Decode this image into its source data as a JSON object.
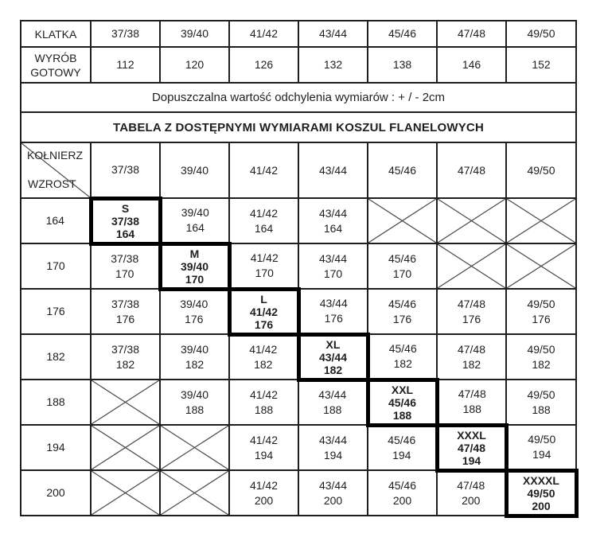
{
  "colors": {
    "border": "#1f1f1f",
    "text": "#1f1f1f",
    "highlight_border": "#000000",
    "x_line": "#4a4a4a",
    "background": "#ffffff"
  },
  "top_table": {
    "rows": [
      {
        "label": "KLATKA",
        "values": [
          "37/38",
          "39/40",
          "41/42",
          "43/44",
          "45/46",
          "47/48",
          "49/50"
        ]
      },
      {
        "label": "WYRÓB GOTOWY",
        "values": [
          "112",
          "120",
          "126",
          "132",
          "138",
          "146",
          "152"
        ]
      }
    ]
  },
  "note": "Dopuszczalna wartość odchylenia wymiarów : + / - 2cm",
  "title": "TABELA Z DOSTĘPNYMI WYMIARAMI KOSZUL FLANELOWYCH",
  "size_table": {
    "corner": {
      "top_label": "KOŁNIERZ",
      "bottom_label": "WZROST"
    },
    "columns": [
      "37/38",
      "39/40",
      "41/42",
      "43/44",
      "45/46",
      "47/48",
      "49/50"
    ],
    "rows": [
      {
        "height": "164",
        "cells": [
          {
            "type": "highlight",
            "size": "S",
            "collar": "37/38",
            "h": "164"
          },
          {
            "type": "available",
            "collar": "39/40",
            "h": "164"
          },
          {
            "type": "available",
            "collar": "41/42",
            "h": "164"
          },
          {
            "type": "available",
            "collar": "43/44",
            "h": "164"
          },
          {
            "type": "x"
          },
          {
            "type": "x"
          },
          {
            "type": "x"
          }
        ]
      },
      {
        "height": "170",
        "cells": [
          {
            "type": "available",
            "collar": "37/38",
            "h": "170"
          },
          {
            "type": "highlight",
            "size": "M",
            "collar": "39/40",
            "h": "170"
          },
          {
            "type": "available",
            "collar": "41/42",
            "h": "170"
          },
          {
            "type": "available",
            "collar": "43/44",
            "h": "170"
          },
          {
            "type": "available",
            "collar": "45/46",
            "h": "170"
          },
          {
            "type": "x"
          },
          {
            "type": "x"
          }
        ]
      },
      {
        "height": "176",
        "cells": [
          {
            "type": "available",
            "collar": "37/38",
            "h": "176"
          },
          {
            "type": "available",
            "collar": "39/40",
            "h": "176"
          },
          {
            "type": "highlight",
            "size": "L",
            "collar": "41/42",
            "h": "176"
          },
          {
            "type": "available",
            "collar": "43/44",
            "h": "176"
          },
          {
            "type": "available",
            "collar": "45/46",
            "h": "176"
          },
          {
            "type": "available",
            "collar": "47/48",
            "h": "176"
          },
          {
            "type": "available",
            "collar": "49/50",
            "h": "176"
          }
        ]
      },
      {
        "height": "182",
        "cells": [
          {
            "type": "available",
            "collar": "37/38",
            "h": "182"
          },
          {
            "type": "available",
            "collar": "39/40",
            "h": "182"
          },
          {
            "type": "available",
            "collar": "41/42",
            "h": "182"
          },
          {
            "type": "highlight",
            "size": "XL",
            "collar": "43/44",
            "h": "182"
          },
          {
            "type": "available",
            "collar": "45/46",
            "h": "182"
          },
          {
            "type": "available",
            "collar": "47/48",
            "h": "182"
          },
          {
            "type": "available",
            "collar": "49/50",
            "h": "182"
          }
        ]
      },
      {
        "height": "188",
        "cells": [
          {
            "type": "x"
          },
          {
            "type": "available",
            "collar": "39/40",
            "h": "188"
          },
          {
            "type": "available",
            "collar": "41/42",
            "h": "188"
          },
          {
            "type": "available",
            "collar": "43/44",
            "h": "188"
          },
          {
            "type": "highlight",
            "size": "XXL",
            "collar": "45/46",
            "h": "188"
          },
          {
            "type": "available",
            "collar": "47/48",
            "h": "188"
          },
          {
            "type": "available",
            "collar": "49/50",
            "h": "188"
          }
        ]
      },
      {
        "height": "194",
        "cells": [
          {
            "type": "x"
          },
          {
            "type": "x"
          },
          {
            "type": "available",
            "collar": "41/42",
            "h": "194"
          },
          {
            "type": "available",
            "collar": "43/44",
            "h": "194"
          },
          {
            "type": "available",
            "collar": "45/46",
            "h": "194"
          },
          {
            "type": "highlight",
            "size": "XXXL",
            "collar": "47/48",
            "h": "194"
          },
          {
            "type": "available",
            "collar": "49/50",
            "h": "194"
          }
        ]
      },
      {
        "height": "200",
        "cells": [
          {
            "type": "x"
          },
          {
            "type": "x"
          },
          {
            "type": "available",
            "collar": "41/42",
            "h": "200"
          },
          {
            "type": "available",
            "collar": "43/44",
            "h": "200"
          },
          {
            "type": "available",
            "collar": "45/46",
            "h": "200"
          },
          {
            "type": "available",
            "collar": "47/48",
            "h": "200"
          },
          {
            "type": "highlight",
            "size": "XXXXL",
            "collar": "49/50",
            "h": "200"
          }
        ]
      }
    ]
  },
  "layout_numbers": {
    "row_heights": {
      "klatka": 33,
      "wyrob": 45,
      "note": 37,
      "title": 38,
      "header": 70,
      "data": 57
    }
  }
}
